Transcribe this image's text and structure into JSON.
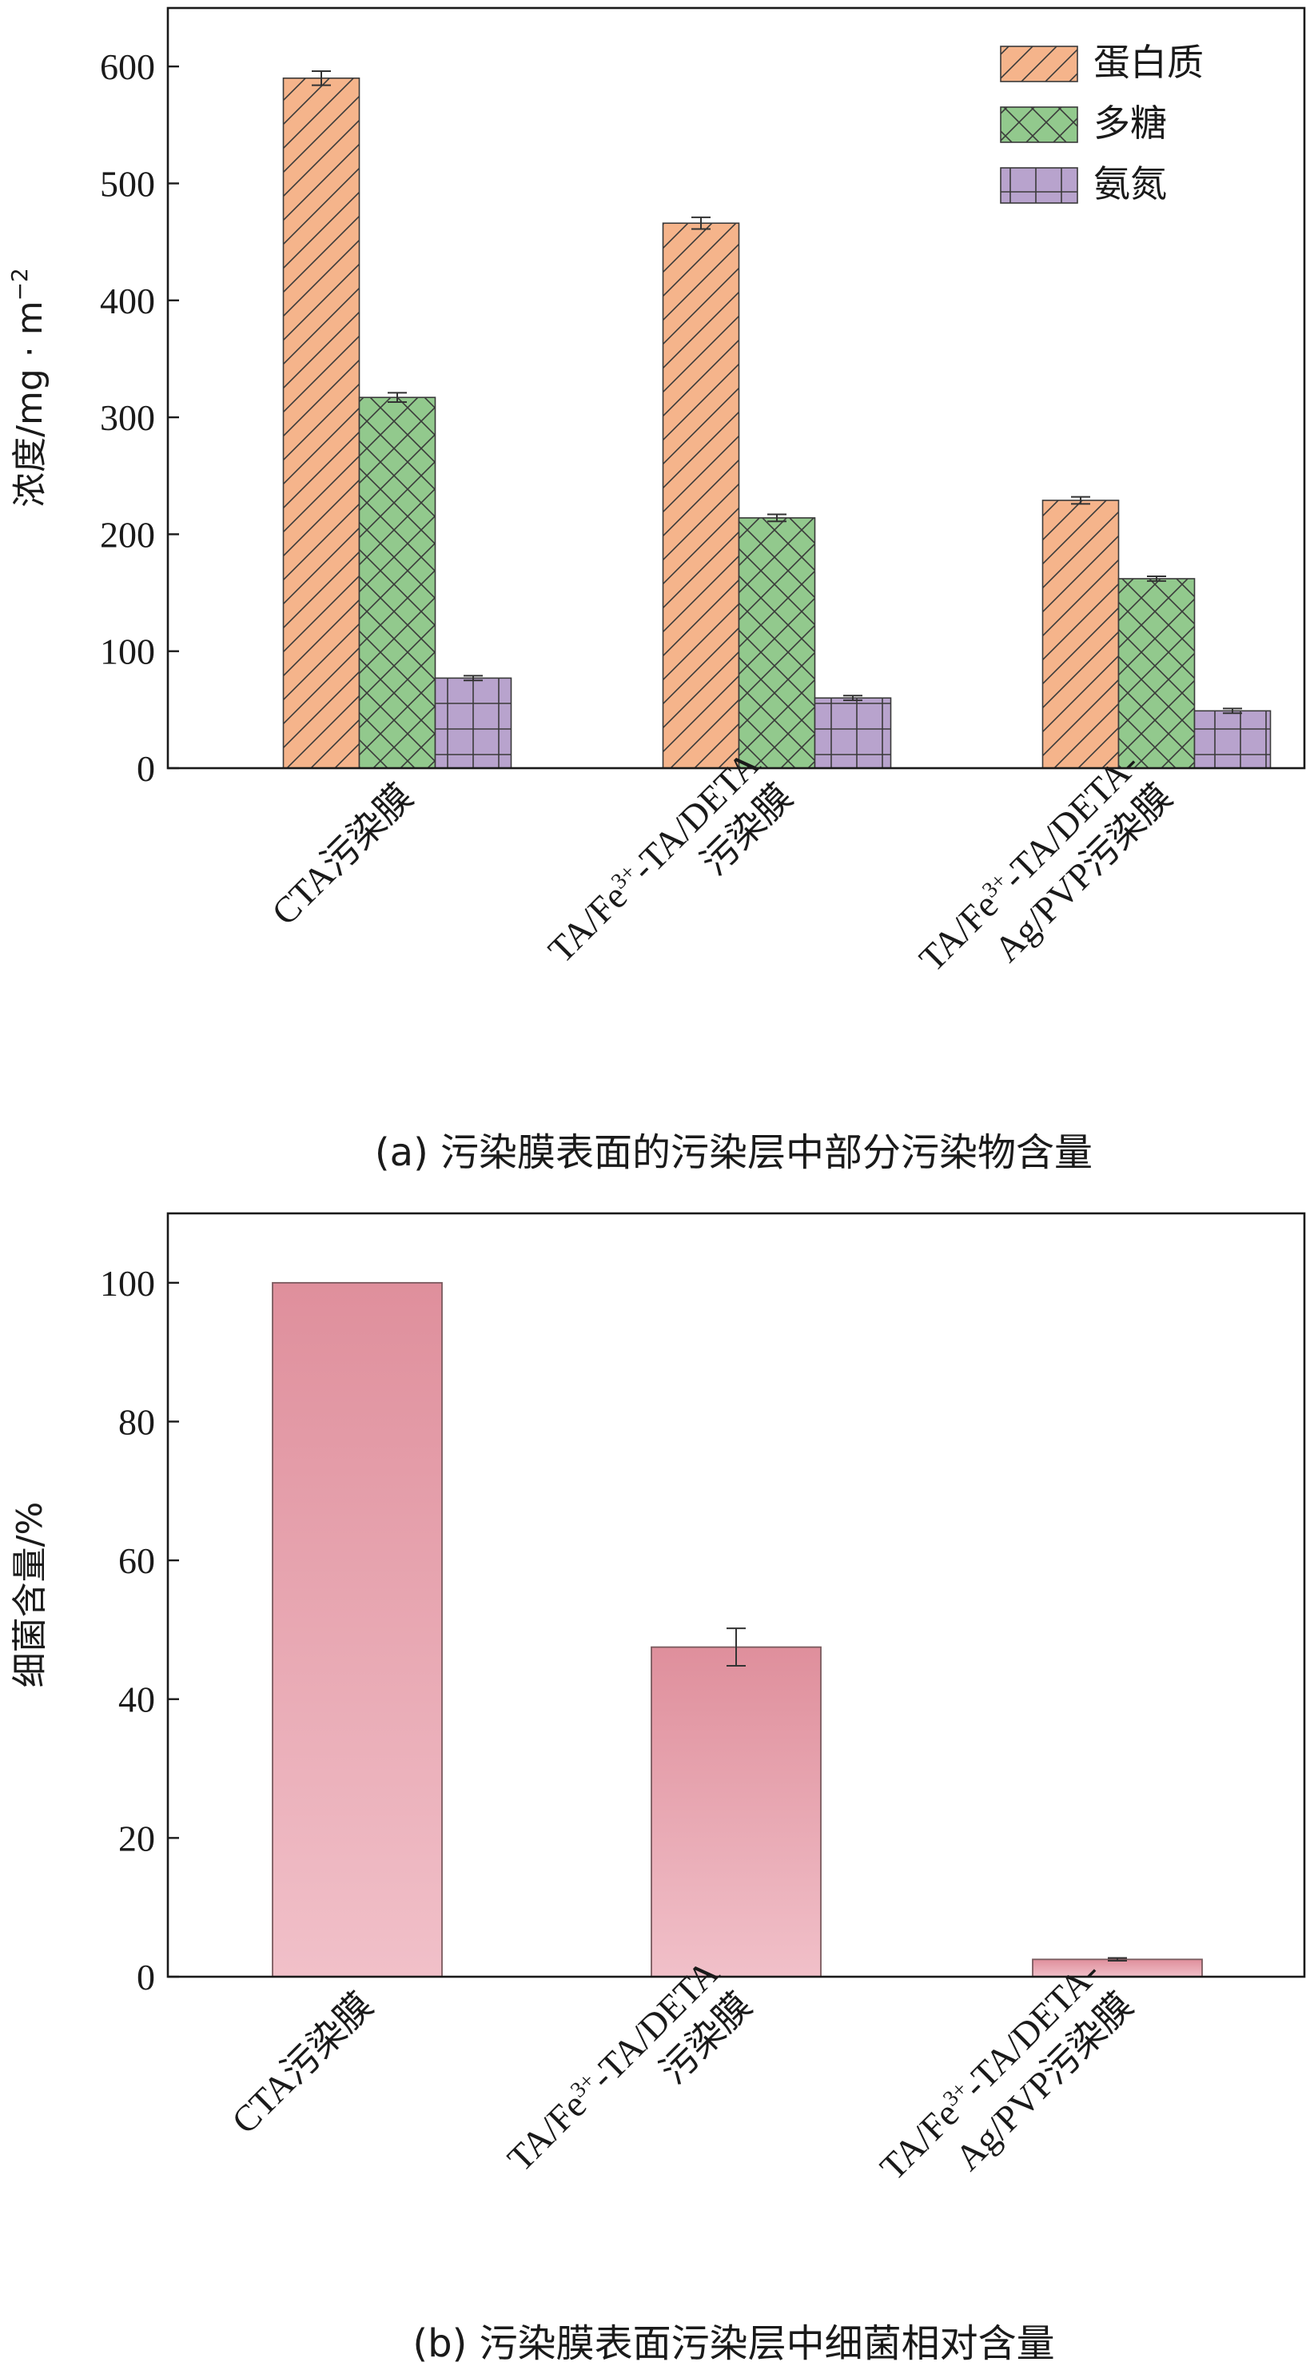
{
  "colors": {
    "protein": "#f5b48b",
    "polysaccharide": "#92c98d",
    "ammonia": "#b8a3cd",
    "bacteria_top": "#df8f9c",
    "bacteria_bottom": "#f1c0c9",
    "hatch": "#3a3a3a",
    "axis": "#1a1a1a"
  },
  "chart_data": [
    {
      "type": "bar",
      "caption": "(a) 污染膜表面的污染层中部分污染物含量",
      "ylabel": "浓度/mg · m",
      "ylabel_sup": "−2",
      "ylim": [
        0,
        650
      ],
      "yticks": [
        0,
        100,
        200,
        300,
        400,
        500,
        600
      ],
      "grid": false,
      "legend_position": "top-right",
      "categories": [
        {
          "lines": [
            {
              "main": "CTA污染膜"
            }
          ]
        },
        {
          "lines": [
            {
              "main": "TA/Fe",
              "sup": "3+",
              "tail": "-TA/DETA"
            },
            {
              "main": "污染膜"
            }
          ]
        },
        {
          "lines": [
            {
              "main": "TA/Fe",
              "sup": "3+",
              "tail": "-TA/DETA-"
            },
            {
              "main": "Ag/PVP污染膜"
            }
          ]
        }
      ],
      "series": [
        {
          "name": "蛋白质",
          "values": [
            590,
            466,
            229
          ],
          "errors": [
            6,
            5,
            3
          ],
          "pattern": "diagonal",
          "color_key": "protein"
        },
        {
          "name": "多糖",
          "values": [
            317,
            214,
            162
          ],
          "errors": [
            4,
            3,
            2
          ],
          "pattern": "crosshatch",
          "color_key": "polysaccharide"
        },
        {
          "name": "氨氮",
          "values": [
            77,
            60,
            49
          ],
          "errors": [
            2,
            2,
            2
          ],
          "pattern": "grid",
          "color_key": "ammonia"
        }
      ]
    },
    {
      "type": "bar",
      "caption": "(b) 污染膜表面污染层中细菌相对含量",
      "ylabel": "细菌含量/%",
      "ylim": [
        0,
        110
      ],
      "yticks": [
        0,
        20,
        40,
        60,
        80,
        100
      ],
      "grid": false,
      "categories": [
        {
          "lines": [
            {
              "main": "CTA污染膜"
            }
          ]
        },
        {
          "lines": [
            {
              "main": "TA/Fe",
              "sup": "3+",
              "tail": "-TA/DETA"
            },
            {
              "main": "污染膜"
            }
          ]
        },
        {
          "lines": [
            {
              "main": "TA/Fe",
              "sup": "3+",
              "tail": "-TA/DETA-"
            },
            {
              "main": "Ag/PVP污染膜"
            }
          ]
        }
      ],
      "series": [
        {
          "values": [
            100,
            47.5,
            2.5
          ],
          "errors": [
            0,
            2.7,
            0.2
          ]
        }
      ]
    }
  ]
}
